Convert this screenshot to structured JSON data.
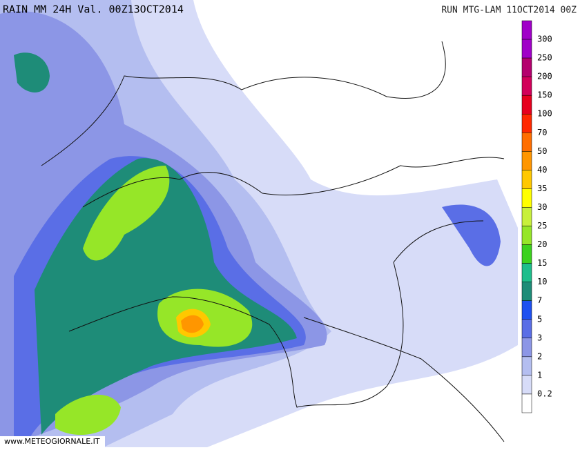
{
  "header": {
    "title": "RAIN  MM  24H  Val.  00Z13OCT2014",
    "run": "RUN  MTG-LAM  11OCT2014  00Z"
  },
  "legend": {
    "levels": [
      300,
      250,
      200,
      150,
      100,
      70,
      50,
      40,
      35,
      30,
      25,
      20,
      15,
      10,
      7,
      5,
      3,
      2,
      1,
      0.2
    ],
    "colors": [
      "#a000c8",
      "#b4006e",
      "#d2005a",
      "#e6001e",
      "#ff2800",
      "#ff6e00",
      "#ff9600",
      "#ffc800",
      "#ffff00",
      "#c8f03c",
      "#96e628",
      "#3cd21e",
      "#1ebe8c",
      "#1e8c78",
      "#1e50f0",
      "#5a6ee6",
      "#8c96e6",
      "#b4bef0",
      "#d7dcf8",
      "#ffffff"
    ]
  },
  "footer": {
    "watermark": "www.METEOGIORNALE.IT"
  }
}
